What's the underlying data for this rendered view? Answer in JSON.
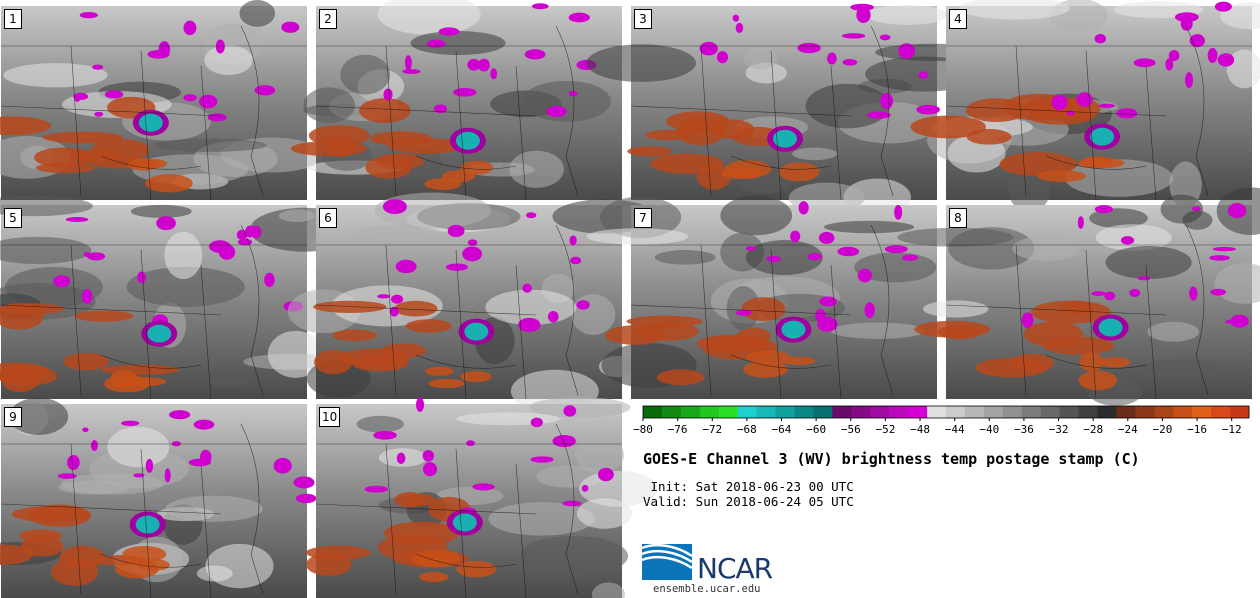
{
  "panels": [
    {
      "label": "1"
    },
    {
      "label": "2"
    },
    {
      "label": "3"
    },
    {
      "label": "4"
    },
    {
      "label": "5"
    },
    {
      "label": "6"
    },
    {
      "label": "7"
    },
    {
      "label": "8"
    },
    {
      "label": "9"
    },
    {
      "label": "10"
    }
  ],
  "chart_data": {
    "type": "heatmap",
    "title": "GOES-E Channel 3 (WV) brightness temp postage stamp (C)",
    "init": "Init: Sat 2018-06-23 00 UTC",
    "valid": "Valid: Sun 2018-06-24 05 UTC",
    "colorbar": {
      "unit": "C",
      "ticks": [
        -80,
        -76,
        -72,
        -68,
        -64,
        -60,
        -56,
        -52,
        -48,
        -44,
        -40,
        -36,
        -32,
        -28,
        -24,
        -20,
        -16,
        -12
      ],
      "range": [
        -80,
        -10
      ],
      "colors": [
        "#0a6a0a",
        "#108a10",
        "#18a818",
        "#20c820",
        "#28e028",
        "#20d0d0",
        "#18b8b8",
        "#10a0a0",
        "#0a8888",
        "#087070",
        "#6a0a6a",
        "#850a85",
        "#a00aa0",
        "#bb0abb",
        "#d600d6",
        "#e0e0e0",
        "#cccccc",
        "#b8b8b8",
        "#a4a4a4",
        "#909090",
        "#7c7c7c",
        "#686868",
        "#545454",
        "#404040",
        "#2c2c2c",
        "#6a2e18",
        "#8a3818",
        "#a84418",
        "#c85018",
        "#e06018",
        "#d84818",
        "#c83818"
      ]
    },
    "members": [
      "1",
      "2",
      "3",
      "4",
      "5",
      "6",
      "7",
      "8",
      "9",
      "10"
    ]
  },
  "logo": {
    "text": "NCAR",
    "site": "ensemble.ucar.edu"
  }
}
